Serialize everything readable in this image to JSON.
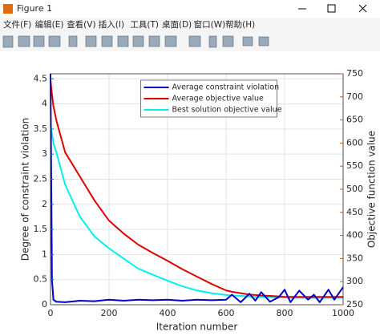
{
  "window": {
    "title": "Figure 1",
    "menu": [
      "文件(F)",
      "编辑(E)",
      "查看(V)",
      "插入(I)",
      "工具(T)",
      "桌面(D)",
      "窗口(W)",
      "帮助(H)"
    ]
  },
  "chart_data": {
    "type": "line",
    "x_label": "Iteration number",
    "y_label": "Degree of constraint violation",
    "y2_label": "Objective function value",
    "x": [
      0,
      5,
      10,
      20,
      50,
      100,
      150,
      200,
      250,
      300,
      350,
      400,
      450,
      500,
      550,
      600,
      620,
      650,
      680,
      700,
      720,
      750,
      780,
      800,
      820,
      850,
      880,
      900,
      920,
      950,
      970,
      1000
    ],
    "series": [
      {
        "name": "Average constraint violation",
        "color": "#0000c8",
        "axis": "y",
        "values": [
          4.6,
          0.5,
          0.1,
          0.06,
          0.05,
          0.08,
          0.07,
          0.1,
          0.08,
          0.1,
          0.09,
          0.1,
          0.08,
          0.1,
          0.09,
          0.1,
          0.2,
          0.05,
          0.22,
          0.08,
          0.25,
          0.06,
          0.15,
          0.3,
          0.05,
          0.28,
          0.1,
          0.2,
          0.05,
          0.3,
          0.1,
          0.35
        ]
      },
      {
        "name": "Average objective value",
        "color": "#e00000",
        "axis": "y2",
        "values": [
          736,
          705,
          680,
          649,
          580,
          528,
          476,
          432,
          404,
          380,
          362,
          345,
          327,
          311,
          295,
          281,
          278,
          275,
          272,
          271,
          270,
          269,
          268,
          267,
          267,
          267,
          267,
          267,
          267,
          267,
          267,
          267
        ]
      },
      {
        "name": "Best solution objective value",
        "color": "#00f0f0",
        "axis": "y2",
        "values": [
          640,
          620,
          600,
          580,
          510,
          441,
          398,
          372,
          350,
          328,
          315,
          302,
          290,
          281,
          275,
          271,
          270,
          269,
          268,
          267,
          267,
          266,
          266,
          266,
          265,
          265,
          265,
          265,
          265,
          265,
          265,
          265
        ]
      }
    ],
    "xlim": [
      0,
      1000
    ],
    "xticks": [
      0,
      200,
      400,
      600,
      800,
      1000
    ],
    "ylim": [
      0,
      4.6
    ],
    "yticks": [
      0,
      0.5,
      1,
      1.5,
      2,
      2.5,
      3,
      3.5,
      4,
      4.5
    ],
    "y2lim": [
      250,
      750
    ],
    "y2ticks": [
      250,
      300,
      350,
      400,
      450,
      500,
      550,
      600,
      650,
      700,
      750
    ],
    "y_color": "#0072bd",
    "y2_color": "#d95319",
    "grid": true,
    "legend": "north"
  }
}
